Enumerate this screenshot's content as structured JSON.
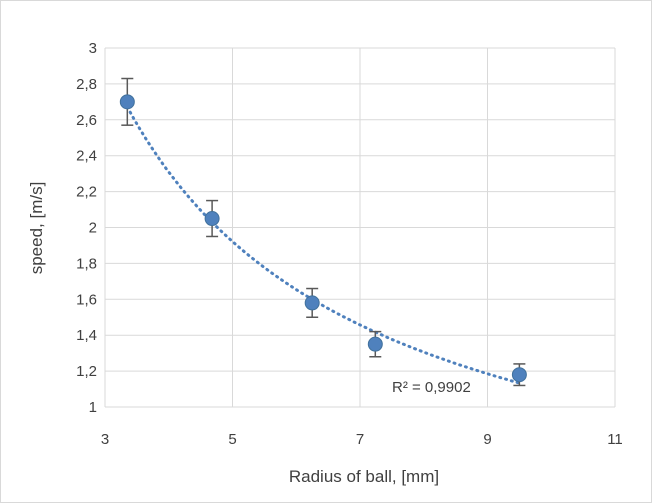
{
  "chart_data": {
    "type": "scatter",
    "title": "",
    "xlabel": "Radius of ball, [mm]",
    "ylabel": "speed, [m/s]",
    "xlim": [
      3,
      11
    ],
    "ylim": [
      1,
      3
    ],
    "x_ticks": [
      "3",
      "5",
      "7",
      "9",
      "11"
    ],
    "y_ticks": [
      "1",
      "1,2",
      "1,4",
      "1,6",
      "1,8",
      "2",
      "2,2",
      "2,4",
      "2,6",
      "2,8",
      "3"
    ],
    "grid": true,
    "legend": "none",
    "series": [
      {
        "x": [
          3.35,
          4.68,
          6.25,
          7.24,
          9.5
        ],
        "y": [
          2.7,
          2.05,
          1.58,
          1.35,
          1.18
        ],
        "error": [
          0.13,
          0.1,
          0.08,
          0.07,
          0.06
        ],
        "color": "#4f81bd"
      }
    ],
    "trendline": {
      "style": "dotted",
      "color": "#4f81bd",
      "x_range": [
        3.35,
        9.5
      ],
      "annotation": "R² = 0,9902"
    }
  }
}
